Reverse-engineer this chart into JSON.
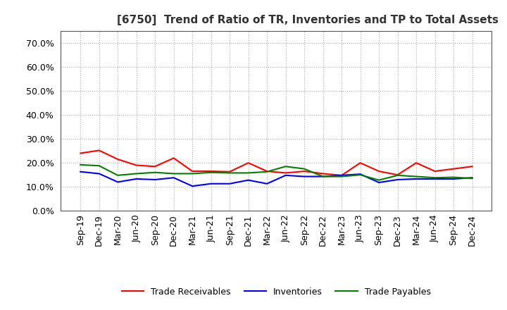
{
  "title": "[6750]  Trend of Ratio of TR, Inventories and TP to Total Assets",
  "x_labels": [
    "Sep-19",
    "Dec-19",
    "Mar-20",
    "Jun-20",
    "Sep-20",
    "Dec-20",
    "Mar-21",
    "Jun-21",
    "Sep-21",
    "Dec-21",
    "Mar-22",
    "Jun-22",
    "Sep-22",
    "Dec-22",
    "Mar-23",
    "Jun-23",
    "Sep-23",
    "Dec-23",
    "Mar-24",
    "Jun-24",
    "Sep-24",
    "Dec-24"
  ],
  "trade_receivables": [
    0.24,
    0.252,
    0.215,
    0.19,
    0.185,
    0.22,
    0.165,
    0.165,
    0.163,
    0.2,
    0.165,
    0.158,
    0.165,
    0.155,
    0.148,
    0.2,
    0.165,
    0.15,
    0.2,
    0.165,
    0.175,
    0.185
  ],
  "inventories": [
    0.163,
    0.155,
    0.12,
    0.133,
    0.13,
    0.138,
    0.103,
    0.113,
    0.113,
    0.128,
    0.113,
    0.148,
    0.143,
    0.143,
    0.148,
    0.153,
    0.118,
    0.13,
    0.133,
    0.133,
    0.133,
    0.138
  ],
  "trade_payables": [
    0.192,
    0.188,
    0.148,
    0.155,
    0.16,
    0.155,
    0.155,
    0.16,
    0.158,
    0.158,
    0.163,
    0.185,
    0.175,
    0.143,
    0.143,
    0.15,
    0.128,
    0.148,
    0.143,
    0.138,
    0.14,
    0.135
  ],
  "ylim": [
    0.0,
    0.75
  ],
  "yticks": [
    0.0,
    0.1,
    0.2,
    0.3,
    0.4,
    0.5,
    0.6,
    0.7
  ],
  "line_color_tr": "#ff0000",
  "line_color_inv": "#0000ff",
  "line_color_tp": "#008000",
  "legend_labels": [
    "Trade Receivables",
    "Inventories",
    "Trade Payables"
  ],
  "background_color": "#ffffff",
  "grid_color": "#aaaaaa",
  "title_color": "#333333",
  "title_fontsize": 11,
  "tick_fontsize": 9,
  "legend_fontsize": 9
}
